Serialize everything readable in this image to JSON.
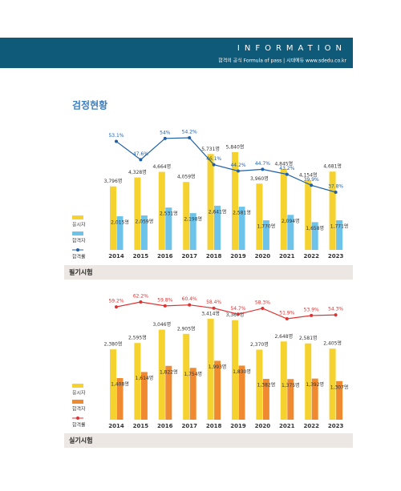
{
  "header": {
    "title": "INFORMATION",
    "subtitle": "합격의 공식 Formula of pass | 시대에듀 www.sdedu.co.kr"
  },
  "section_title": "검정현황",
  "chart_data": [
    {
      "type": "combo",
      "title": "필기시험",
      "categories": [
        "2014",
        "2015",
        "2016",
        "2017",
        "2018",
        "2019",
        "2020",
        "2021",
        "2022",
        "2023"
      ],
      "series": [
        {
          "name": "응시자",
          "type": "bar",
          "color": "#f5d22e",
          "values": [
            3796,
            4328,
            4664,
            4059,
            5731,
            5840,
            3960,
            4845,
            4154,
            4681
          ],
          "value_labels": [
            "3,796명",
            "4,328명",
            "4,664명",
            "4,059명",
            "5,731명",
            "5,840명",
            "3,960명",
            "4,845명",
            "4,154명",
            "4,681명"
          ]
        },
        {
          "name": "합격자",
          "type": "bar",
          "color": "#6ec3ea",
          "values": [
            2015,
            2059,
            2531,
            2198,
            2641,
            2581,
            1770,
            2094,
            1658,
            1771
          ],
          "value_labels": [
            "2,015명",
            "2,059명",
            "2,531명",
            "2,198명",
            "2,641명",
            "2,581명",
            "1,770명",
            "2,094명",
            "1,658명",
            "1,771명"
          ]
        },
        {
          "name": "합격률",
          "type": "line",
          "axis": "y2",
          "color": "#1f5fa8",
          "values": [
            53.1,
            47.6,
            54,
            54.2,
            46.1,
            44.2,
            44.7,
            43.2,
            39.9,
            37.8
          ],
          "value_labels": [
            "53.1%",
            "47.6%",
            "54%",
            "54.2%",
            "46.1%",
            "44.2%",
            "44.7%",
            "43.2%",
            "39.9%",
            "37.8%"
          ]
        }
      ]
    },
    {
      "type": "combo",
      "title": "실기시험",
      "categories": [
        "2014",
        "2015",
        "2016",
        "2017",
        "2018",
        "2019",
        "2020",
        "2021",
        "2022",
        "2023"
      ],
      "series": [
        {
          "name": "응시자",
          "type": "bar",
          "color": "#f5d22e",
          "values": [
            2380,
            2595,
            3046,
            2905,
            3414,
            3367,
            2370,
            2648,
            2581,
            2405
          ],
          "value_labels": [
            "2,380명",
            "2,595명",
            "3,046명",
            "2,905명",
            "3,414명",
            "3,367명",
            "2,370명",
            "2,648명",
            "2,581명",
            "2,405명"
          ]
        },
        {
          "name": "합격자",
          "type": "bar",
          "color": "#f08a30",
          "values": [
            1408,
            1614,
            1822,
            1754,
            1993,
            1830,
            1382,
            1375,
            1392,
            1307
          ],
          "value_labels": [
            "1,408명",
            "1,614명",
            "1,822명",
            "1,754명",
            "1,993명",
            "1,830명",
            "1,382명",
            "1,375명",
            "1,392명",
            "1,307명"
          ]
        },
        {
          "name": "합격률",
          "type": "line",
          "axis": "y2",
          "color": "#e03030",
          "values": [
            59.2,
            62.2,
            59.8,
            60.4,
            58.4,
            54.7,
            58.3,
            51.9,
            53.9,
            54.3
          ],
          "value_labels": [
            "59.2%",
            "62.2%",
            "59.8%",
            "60.4%",
            "58.4%",
            "54.7%",
            "58.3%",
            "51.9%",
            "53.9%",
            "54.3%"
          ]
        }
      ]
    }
  ]
}
